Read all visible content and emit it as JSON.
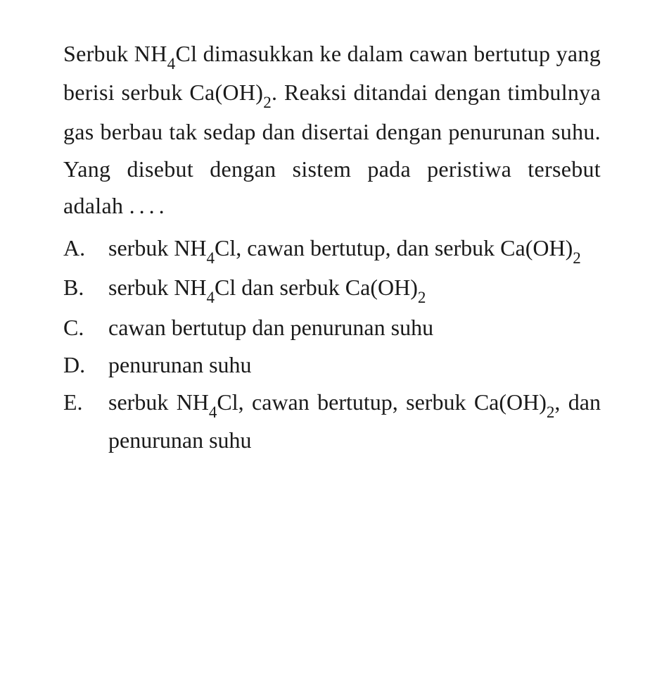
{
  "question": {
    "p1": "Serbuk NH",
    "sub1": "4",
    "p2": "Cl dimasukkan ke dalam cawan bertutup yang berisi serbuk Ca(OH)",
    "sub2": "2",
    "p3": ". Reaksi ditandai dengan timbulnya gas berbau tak sedap dan disertai dengan penurunan suhu. Yang disebut dengan sistem pada peristiwa tersebut adalah ",
    "dots": "...."
  },
  "options": {
    "a": {
      "letter": "A.",
      "t1": "serbuk NH",
      "s1": "4",
      "t2": "Cl, cawan bertutup, dan serbuk Ca(OH)",
      "s2": "2"
    },
    "b": {
      "letter": "B.",
      "t1": "serbuk NH",
      "s1": "4",
      "t2": "Cl dan serbuk Ca(OH)",
      "s2": "2"
    },
    "c": {
      "letter": "C.",
      "text": "cawan bertutup dan penurunan suhu"
    },
    "d": {
      "letter": "D.",
      "text": "penurunan suhu"
    },
    "e": {
      "letter": "E.",
      "t1": "serbuk NH",
      "s1": "4",
      "t2": "Cl, cawan bertutup, serbuk Ca(OH)",
      "s2": "2",
      "t3": ", dan penurunan suhu"
    }
  },
  "style": {
    "background_color": "#ffffff",
    "text_color": "#1a1a1a",
    "font_family": "Georgia, Times New Roman, serif",
    "question_fontsize": 32,
    "option_fontsize": 32,
    "line_height": 1.65,
    "subscript_scale": 0.72
  }
}
